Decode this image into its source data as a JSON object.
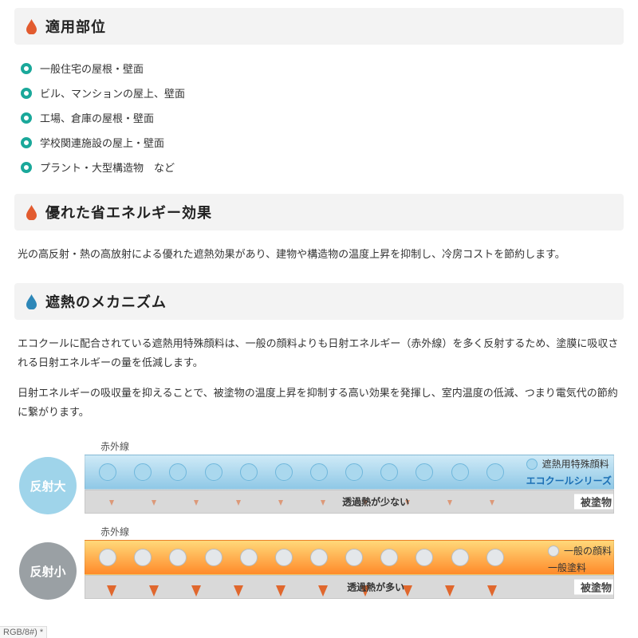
{
  "colors": {
    "drop_red": "#e25b2f",
    "drop_blue": "#2d87b8",
    "ring": "#1aa89a",
    "badge_large": "#9fd4ea",
    "badge_small": "#9aa0a4",
    "layer_blue_top": "#cfeaf7",
    "layer_blue_bot": "#8fc8e6",
    "layer_orange_top": "#ffd97a",
    "layer_orange_bot": "#ff8a2a",
    "substrate": "#d9d9d9",
    "pigment_blue": "#aad8ee",
    "pigment_blue_stroke": "#6fb7dc",
    "pigment_gray": "#e4e7ea",
    "pigment_gray_stroke": "#b7bcc1",
    "arrow_orange": "#ff8b52",
    "arrow_orange_dark": "#e05a1a",
    "legend_brand": "#1b6fb5"
  },
  "sections": {
    "s1": {
      "title": "適用部位",
      "drop": "red"
    },
    "s2": {
      "title": "優れた省エネルギー効果",
      "drop": "red"
    },
    "s3": {
      "title": "遮熱のメカニズム",
      "drop": "blue"
    }
  },
  "list": [
    "一般住宅の屋根・壁面",
    "ビル、マンションの屋上、壁面",
    "工場、倉庫の屋根・壁面",
    "学校関連施設の屋上・壁面",
    "プラント・大型構造物　など"
  ],
  "para1": "光の高反射・熱の高放射による優れた遮熱効果があり、建物や構造物の温度上昇を抑制し、冷房コストを節約します。",
  "para2a": "エコクールに配合されている遮熱用特殊顔料は、一般の顔料よりも日射エネルギー（赤外線）を多く反射するため、塗膜に吸収される日射エネルギーの量を低減します。",
  "para2b": "日射エネルギーの吸収量を抑えることで、被塗物の温度上昇を抑制する高い効果を発揮し、室内温度の低減、つまり電気代の節約に繋がります。",
  "diagram": {
    "ir_label": "赤外線",
    "large": {
      "badge": "反射大",
      "mid": "透過熱が少ない",
      "legend_pigment": "遮熱用特殊顔料",
      "legend_brand": "エコクールシリーズ",
      "legend_sub": "被塗物"
    },
    "small": {
      "badge": "反射小",
      "mid": "透過熱が多い",
      "legend_pigment": "一般の顔料",
      "legend_paint": "一般塗料",
      "legend_sub": "被塗物"
    }
  },
  "footer": "RGB/8#) *"
}
